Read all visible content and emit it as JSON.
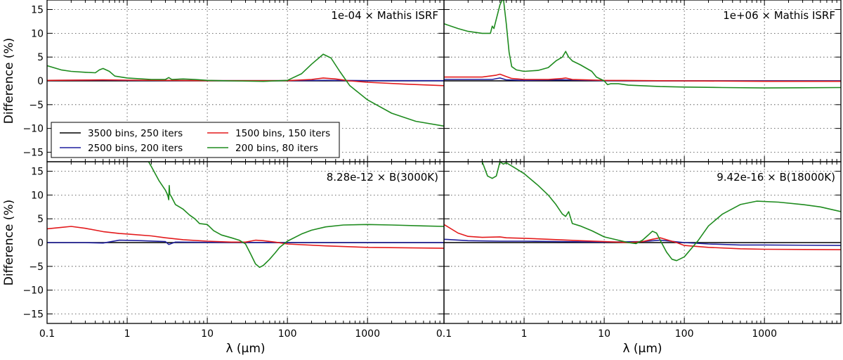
{
  "chart_data": [
    {
      "type": "line",
      "annotation": "1e-04 × Mathis ISRF",
      "xlabel": "",
      "ylabel": "Difference (%)",
      "xscale": "log",
      "xlim": [
        0.1,
        9000
      ],
      "ylim": [
        -17,
        17
      ],
      "grid": true,
      "legend": "lower-left",
      "series": [
        {
          "name": "3500 bins, 250 iters",
          "color": "#000000",
          "x": [
            0.1,
            9000
          ],
          "y": [
            0,
            0
          ]
        },
        {
          "name": "2500 bins, 200 iters",
          "color": "#1f1f9e",
          "x": [
            0.1,
            0.5,
            1,
            10,
            100,
            300,
            1000,
            9000
          ],
          "y": [
            0.1,
            0.15,
            0.1,
            0.05,
            0.05,
            0.1,
            0.05,
            0.05
          ]
        },
        {
          "name": "1500 bins, 150 iters",
          "color": "#e31a1c",
          "x": [
            0.1,
            0.5,
            1,
            3,
            10,
            100,
            200,
            280,
            400,
            600,
            1000,
            3000,
            9000
          ],
          "y": [
            0.1,
            0.2,
            0.15,
            0.1,
            0.05,
            0.05,
            0.3,
            0.6,
            0.4,
            0,
            -0.3,
            -0.7,
            -1.0
          ]
        },
        {
          "name": "200 bins, 80 iters",
          "color": "#1e8b1e",
          "x": [
            0.1,
            0.15,
            0.2,
            0.3,
            0.4,
            0.45,
            0.5,
            0.6,
            0.7,
            1,
            2,
            3,
            3.3,
            3.6,
            5,
            7,
            10,
            20,
            50,
            100,
            150,
            200,
            280,
            350,
            450,
            600,
            1000,
            2000,
            4000,
            9000
          ],
          "y": [
            3.2,
            2.3,
            2.0,
            1.8,
            1.7,
            2.3,
            2.6,
            2.0,
            1.0,
            0.6,
            0.3,
            0.3,
            0.7,
            0.3,
            0.4,
            0.3,
            0.1,
            0.0,
            -0.1,
            0.1,
            1.5,
            3.5,
            5.6,
            4.8,
            2.0,
            -1.0,
            -4.0,
            -6.8,
            -8.5,
            -9.5
          ]
        }
      ]
    },
    {
      "type": "line",
      "annotation": "1e+06 × Mathis ISRF",
      "xlabel": "",
      "ylabel": "",
      "xscale": "log",
      "xlim": [
        0.1,
        9000
      ],
      "ylim": [
        -17,
        17
      ],
      "grid": true,
      "series": [
        {
          "color": "#000000",
          "x": [
            0.1,
            9000
          ],
          "y": [
            0,
            0
          ]
        },
        {
          "color": "#1f1f9e",
          "x": [
            0.1,
            0.4,
            0.5,
            0.6,
            1,
            3,
            10,
            100,
            9000
          ],
          "y": [
            0.3,
            0.3,
            0.6,
            0.2,
            0.1,
            0.2,
            0.05,
            0.0,
            0.0
          ]
        },
        {
          "color": "#e31a1c",
          "x": [
            0.1,
            0.3,
            0.45,
            0.5,
            0.6,
            0.7,
            1,
            2,
            3,
            3.3,
            4,
            10,
            100,
            1000,
            9000
          ],
          "y": [
            0.8,
            0.8,
            1.2,
            1.4,
            0.9,
            0.5,
            0.3,
            0.3,
            0.5,
            0.6,
            0.3,
            0.1,
            0,
            -0.1,
            -0.1
          ]
        },
        {
          "color": "#1e8b1e",
          "x": [
            0.1,
            0.15,
            0.2,
            0.3,
            0.38,
            0.4,
            0.42,
            0.45,
            0.5,
            0.55,
            0.6,
            0.65,
            0.7,
            0.8,
            1,
            1.5,
            2,
            2.5,
            3,
            3.3,
            3.6,
            4,
            5,
            7,
            8,
            10,
            11,
            12,
            15,
            20,
            50,
            100,
            300,
            1000,
            9000
          ],
          "y": [
            12.0,
            11.0,
            10.4,
            10.0,
            10.0,
            11.5,
            11.0,
            13.0,
            16.0,
            17.5,
            12.0,
            6.0,
            3.0,
            2.3,
            2.0,
            2.2,
            2.8,
            4.2,
            5.0,
            6.2,
            5.0,
            4.2,
            3.4,
            2.0,
            0.8,
            0.0,
            -0.8,
            -0.6,
            -0.6,
            -0.9,
            -1.2,
            -1.3,
            -1.4,
            -1.5,
            -1.4
          ]
        }
      ]
    },
    {
      "type": "line",
      "annotation": "8.28e-12 × B(3000K)",
      "xlabel": "λ (μm)",
      "ylabel": "Difference (%)",
      "xscale": "log",
      "xlim": [
        0.1,
        9000
      ],
      "ylim": [
        -17,
        17
      ],
      "xticks": [
        "0.1",
        "1",
        "10",
        "100",
        "1000"
      ],
      "grid": true,
      "series": [
        {
          "color": "#000000",
          "x": [
            0.1,
            9000
          ],
          "y": [
            0,
            0
          ]
        },
        {
          "color": "#1f1f9e",
          "x": [
            0.1,
            0.3,
            0.5,
            0.8,
            1.5,
            3,
            3.3,
            4,
            10,
            100,
            9000
          ],
          "y": [
            0,
            0,
            -0.1,
            0.5,
            0.4,
            0.2,
            -0.4,
            0.1,
            0.05,
            0,
            0
          ]
        },
        {
          "color": "#e31a1c",
          "x": [
            0.1,
            0.15,
            0.2,
            0.3,
            0.5,
            0.8,
            1,
            2,
            3,
            5,
            10,
            20,
            30,
            40,
            50,
            70,
            100,
            300,
            1000,
            9000
          ],
          "y": [
            2.9,
            3.2,
            3.4,
            3.0,
            2.3,
            1.9,
            1.8,
            1.4,
            1.0,
            0.6,
            0.3,
            0.1,
            0.1,
            0.5,
            0.4,
            0.1,
            -0.3,
            -0.7,
            -1.0,
            -1.2
          ]
        },
        {
          "color": "#1e8b1e",
          "x": [
            1.85,
            2,
            2.5,
            3,
            3.2,
            3.3,
            3.35,
            3.4,
            3.6,
            4,
            5,
            6,
            7,
            8,
            10,
            12,
            15,
            20,
            25,
            30,
            35,
            40,
            45,
            50,
            60,
            70,
            80,
            100,
            150,
            200,
            300,
            500,
            1000,
            2000,
            5000,
            9000
          ],
          "y": [
            17.0,
            16.0,
            13.0,
            11.0,
            10.0,
            9.0,
            12.0,
            10.2,
            9.5,
            8.0,
            7.0,
            5.8,
            5.0,
            4.0,
            3.8,
            2.5,
            1.6,
            1.0,
            0.5,
            -0.3,
            -2.5,
            -4.5,
            -5.2,
            -4.8,
            -3.5,
            -2.2,
            -1.0,
            0.3,
            1.8,
            2.6,
            3.3,
            3.7,
            3.8,
            3.7,
            3.5,
            3.4
          ]
        }
      ]
    },
    {
      "type": "line",
      "annotation": "9.42e-16 × B(18000K)",
      "xlabel": "λ (μm)",
      "ylabel": "",
      "xscale": "log",
      "xlim": [
        0.1,
        9000
      ],
      "ylim": [
        -17,
        17
      ],
      "xticks": [
        "0.1",
        "1",
        "10",
        "100",
        "1000"
      ],
      "grid": true,
      "series": [
        {
          "color": "#000000",
          "x": [
            0.1,
            9000
          ],
          "y": [
            0,
            0
          ]
        },
        {
          "color": "#1f1f9e",
          "x": [
            0.1,
            0.2,
            0.5,
            1,
            10,
            30,
            50,
            100,
            200,
            500,
            1000,
            9000
          ],
          "y": [
            0.7,
            0.4,
            0.3,
            0.3,
            0.1,
            0.2,
            0.5,
            0,
            -0.3,
            -0.5,
            -0.5,
            -0.6
          ]
        },
        {
          "color": "#e31a1c",
          "x": [
            0.1,
            0.15,
            0.2,
            0.3,
            0.5,
            0.6,
            1,
            2,
            5,
            10,
            20,
            30,
            40,
            50,
            60,
            80,
            100,
            200,
            500,
            1000,
            9000
          ],
          "y": [
            3.8,
            2.0,
            1.3,
            1.1,
            1.2,
            1.0,
            0.9,
            0.7,
            0.4,
            0.2,
            0.0,
            0.2,
            0.7,
            1.0,
            0.6,
            0.0,
            -0.6,
            -1.0,
            -1.3,
            -1.4,
            -1.5
          ]
        },
        {
          "color": "#1e8b1e",
          "x": [
            0.3,
            0.35,
            0.4,
            0.45,
            0.5,
            0.55,
            0.6,
            0.8,
            1,
            1.5,
            2,
            2.5,
            3,
            3.3,
            3.6,
            4,
            5,
            7,
            10,
            15,
            20,
            25,
            30,
            35,
            40,
            45,
            50,
            60,
            70,
            80,
            100,
            150,
            200,
            300,
            500,
            800,
            1500,
            3000,
            5000,
            9000
          ],
          "y": [
            17.0,
            14.0,
            13.5,
            14.0,
            17.0,
            16.5,
            16.8,
            15.5,
            14.5,
            12.0,
            10.0,
            8.0,
            6.0,
            5.5,
            6.5,
            4.0,
            3.5,
            2.5,
            1.2,
            0.5,
            0.0,
            -0.2,
            0.5,
            1.5,
            2.4,
            2.0,
            0.5,
            -2.0,
            -3.5,
            -3.8,
            -3.0,
            0.5,
            3.5,
            6.0,
            8.0,
            8.7,
            8.5,
            8.0,
            7.5,
            6.5
          ]
        }
      ]
    }
  ],
  "legend_entries": [
    {
      "label": "3500 bins, 250 iters",
      "color": "#000000"
    },
    {
      "label": "1500 bins, 150 iters",
      "color": "#e31a1c"
    },
    {
      "label": "2500 bins, 200 iters",
      "color": "#1f1f9e"
    },
    {
      "label": "200 bins, 80 iters",
      "color": "#1e8b1e"
    }
  ],
  "yticks": [
    "15",
    "10",
    "5",
    "0",
    "−5",
    "−10",
    "−15"
  ],
  "ytick_values": [
    15,
    10,
    5,
    0,
    -5,
    -10,
    -15
  ],
  "xtick_values": [
    0.1,
    1,
    10,
    100,
    1000
  ]
}
